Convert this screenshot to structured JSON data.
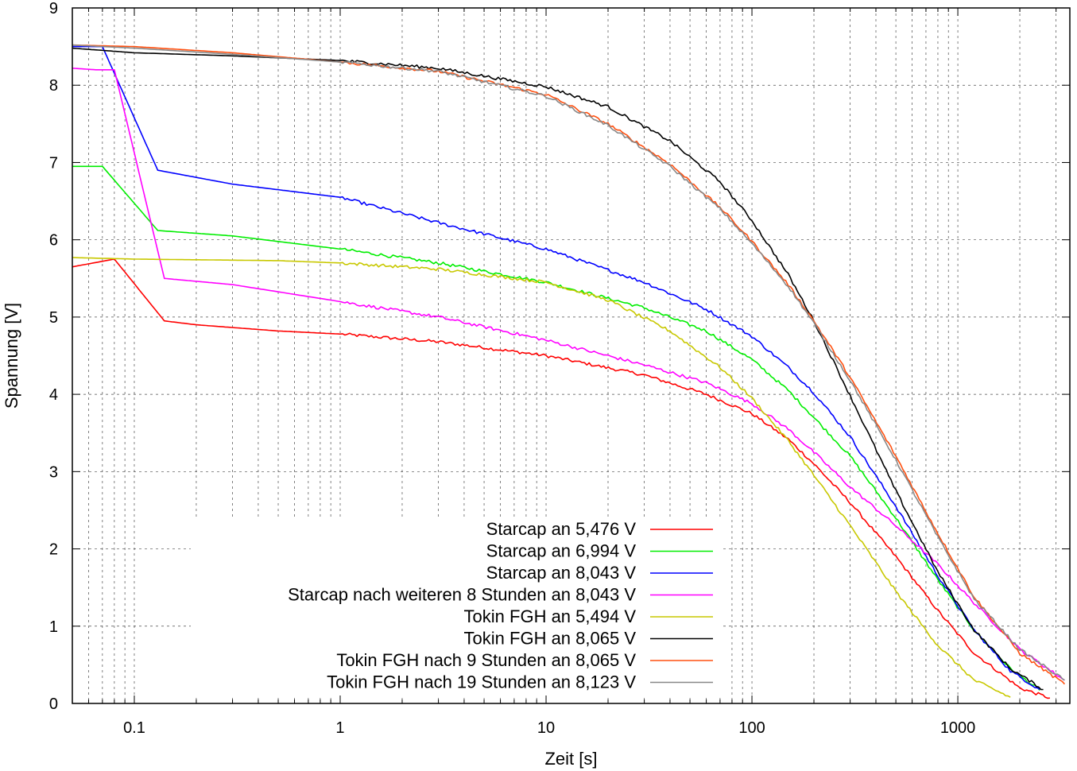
{
  "chart_data": {
    "type": "line",
    "xscale": "log",
    "xlim": [
      0.05,
      3500
    ],
    "ylim": [
      0,
      9
    ],
    "xlabel": "Zeit [s]",
    "ylabel": "Spannung [V]",
    "grid": true,
    "legend_position": "bottom-center",
    "x_ticks": [
      {
        "value": 0.1,
        "label": "0.1"
      },
      {
        "value": 1,
        "label": "1"
      },
      {
        "value": 10,
        "label": "10"
      },
      {
        "value": 100,
        "label": "100"
      },
      {
        "value": 1000,
        "label": "1000"
      }
    ],
    "y_ticks": [
      {
        "value": 0,
        "label": "0"
      },
      {
        "value": 1,
        "label": "1"
      },
      {
        "value": 2,
        "label": "2"
      },
      {
        "value": 3,
        "label": "3"
      },
      {
        "value": 4,
        "label": "4"
      },
      {
        "value": 5,
        "label": "5"
      },
      {
        "value": 6,
        "label": "6"
      },
      {
        "value": 7,
        "label": "7"
      },
      {
        "value": 8,
        "label": "8"
      },
      {
        "value": 9,
        "label": "9"
      }
    ],
    "series": [
      {
        "name": "Starcap an 5,476 V",
        "color": "#ff0000",
        "x": [
          0.05,
          0.08,
          0.14,
          0.2,
          0.5,
          1,
          3,
          10,
          30,
          60,
          100,
          150,
          200,
          300,
          500,
          800,
          1200,
          2000,
          2800
        ],
        "y": [
          5.65,
          5.75,
          4.95,
          4.9,
          4.82,
          4.78,
          4.68,
          4.5,
          4.25,
          4.0,
          3.75,
          3.42,
          3.1,
          2.6,
          1.9,
          1.2,
          0.65,
          0.2,
          0.07
        ]
      },
      {
        "name": "Starcap an 6,994 V",
        "color": "#00ee00",
        "x": [
          0.05,
          0.07,
          0.13,
          0.3,
          1,
          3,
          10,
          30,
          60,
          100,
          150,
          200,
          300,
          500,
          800,
          1200,
          1800,
          2500
        ],
        "y": [
          6.95,
          6.95,
          6.12,
          6.05,
          5.88,
          5.7,
          5.45,
          5.12,
          4.82,
          4.45,
          4.05,
          3.7,
          3.2,
          2.4,
          1.6,
          0.95,
          0.45,
          0.17
        ]
      },
      {
        "name": "Starcap an 8,043 V",
        "color": "#0000ff",
        "x": [
          0.05,
          0.07,
          0.13,
          0.3,
          1,
          3,
          10,
          30,
          60,
          100,
          150,
          200,
          300,
          500,
          800,
          1200,
          1800,
          2500
        ],
        "y": [
          8.5,
          8.5,
          6.9,
          6.72,
          6.55,
          6.22,
          5.88,
          5.45,
          5.1,
          4.75,
          4.35,
          4.02,
          3.45,
          2.55,
          1.65,
          0.95,
          0.42,
          0.18
        ]
      },
      {
        "name": "Starcap nach weiteren 8 Stunden an 8,043 V",
        "color": "#ff00ff",
        "x": [
          0.05,
          0.065,
          0.08,
          0.14,
          0.3,
          1,
          3,
          10,
          30,
          60,
          100,
          150,
          200,
          300,
          500,
          800,
          1200,
          2000,
          3300
        ],
        "y": [
          8.22,
          8.2,
          8.2,
          5.5,
          5.42,
          5.2,
          5.0,
          4.7,
          4.38,
          4.15,
          3.88,
          3.55,
          3.25,
          2.8,
          2.3,
          1.8,
          1.3,
          0.7,
          0.3
        ]
      },
      {
        "name": "Tokin FGH an 5,494 V",
        "color": "#c8c800",
        "x": [
          0.05,
          0.1,
          0.5,
          1,
          3,
          10,
          20,
          40,
          70,
          100,
          150,
          200,
          300,
          500,
          800,
          1200,
          1800
        ],
        "y": [
          5.77,
          5.75,
          5.73,
          5.7,
          5.62,
          5.45,
          5.22,
          4.82,
          4.35,
          3.95,
          3.4,
          2.95,
          2.3,
          1.45,
          0.75,
          0.3,
          0.08
        ]
      },
      {
        "name": "Tokin FGH an 8,065 V",
        "color": "#000000",
        "x": [
          0.05,
          0.1,
          0.3,
          1,
          3,
          10,
          20,
          40,
          70,
          100,
          150,
          200,
          300,
          500,
          800,
          1200,
          1800,
          2600
        ],
        "y": [
          8.48,
          8.42,
          8.38,
          8.32,
          8.22,
          7.98,
          7.72,
          7.28,
          6.75,
          6.25,
          5.55,
          4.95,
          3.98,
          2.75,
          1.7,
          0.95,
          0.45,
          0.18
        ]
      },
      {
        "name": "Tokin FGH nach 9 Stunden an 8,065 V",
        "color": "#ff5010",
        "x": [
          0.05,
          0.1,
          0.3,
          1,
          3,
          10,
          20,
          40,
          70,
          100,
          150,
          200,
          300,
          500,
          800,
          1200,
          2000,
          3300
        ],
        "y": [
          8.52,
          8.5,
          8.42,
          8.3,
          8.18,
          7.88,
          7.5,
          6.98,
          6.42,
          5.98,
          5.42,
          4.95,
          4.22,
          3.2,
          2.2,
          1.38,
          0.65,
          0.25
        ]
      },
      {
        "name": "Tokin FGH nach 19 Stunden an 8,123 V",
        "color": "#888888",
        "x": [
          0.05,
          0.1,
          0.3,
          1,
          3,
          10,
          20,
          40,
          70,
          100,
          150,
          200,
          300,
          500,
          800,
          1200,
          2000,
          3300
        ],
        "y": [
          8.52,
          8.48,
          8.4,
          8.3,
          8.18,
          7.86,
          7.48,
          6.95,
          6.4,
          5.95,
          5.4,
          4.92,
          4.18,
          3.15,
          2.15,
          1.35,
          0.7,
          0.3
        ]
      }
    ]
  }
}
